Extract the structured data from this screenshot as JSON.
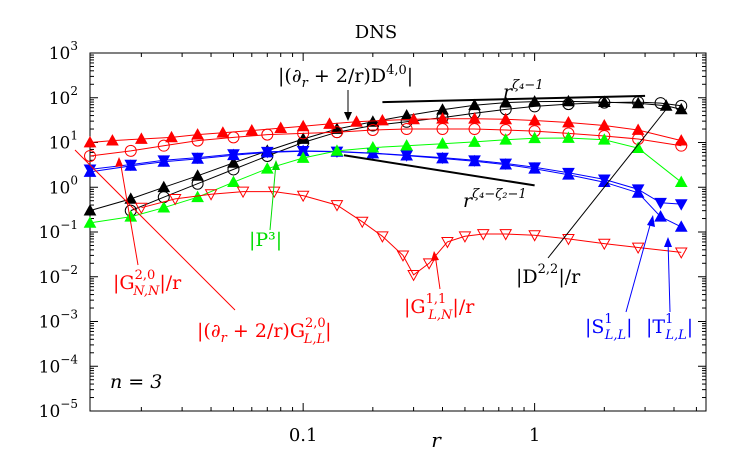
{
  "chart_data": {
    "type": "line",
    "title": "DNS",
    "xlabel": "r",
    "ylabel": "",
    "xscale": "log",
    "yscale": "log",
    "xlim": [
      0.012,
      5.5
    ],
    "ylim": [
      1e-05,
      1000
    ],
    "grid": false,
    "legend": "none",
    "x_ticks": [
      {
        "value": 0.1,
        "label": "0.1"
      },
      {
        "value": 1,
        "label": "1"
      }
    ],
    "y_ticks": [
      {
        "value": 1e-05,
        "base": "10",
        "exp": "−5"
      },
      {
        "value": 0.0001,
        "base": "10",
        "exp": "−4"
      },
      {
        "value": 0.001,
        "base": "10",
        "exp": "−3"
      },
      {
        "value": 0.01,
        "base": "10",
        "exp": "−2"
      },
      {
        "value": 0.1,
        "base": "10",
        "exp": "−1"
      },
      {
        "value": 1,
        "base": "10",
        "exp": "0"
      },
      {
        "value": 10,
        "base": "10",
        "exp": "1"
      },
      {
        "value": 100,
        "base": "10",
        "exp": "2"
      },
      {
        "value": 1000,
        "base": "10",
        "exp": "3"
      }
    ],
    "annotation_n": "n = 3",
    "series": [
      {
        "key": "D40",
        "color": "#000000",
        "marker": "triangle-up",
        "filled": true,
        "x": [
          0.012,
          0.018,
          0.025,
          0.035,
          0.05,
          0.07,
          0.1,
          0.14,
          0.2,
          0.28,
          0.4,
          0.55,
          0.75,
          1.0,
          1.4,
          2.0,
          2.8,
          3.7,
          4.3
        ],
        "y": [
          0.3,
          0.55,
          1.0,
          1.8,
          3.5,
          6.5,
          12,
          20,
          29,
          40,
          54,
          68,
          78,
          82,
          83,
          80,
          75,
          66,
          55
        ]
      },
      {
        "key": "D22",
        "color": "#000000",
        "marker": "circle",
        "filled": false,
        "x": [
          0.018,
          0.025,
          0.035,
          0.05,
          0.07,
          0.1,
          0.14,
          0.2,
          0.28,
          0.4,
          0.55,
          0.75,
          1.0,
          1.4,
          2.0,
          2.8,
          3.5,
          4.3
        ],
        "y": [
          0.3,
          0.6,
          1.2,
          2.5,
          5.0,
          10,
          17,
          24,
          29,
          36,
          45,
          55,
          64,
          72,
          78,
          80,
          76,
          66
        ]
      },
      {
        "key": "GLL_dr",
        "color": "#ff0000",
        "marker": "triangle-up",
        "filled": true,
        "x": [
          0.012,
          0.015,
          0.02,
          0.027,
          0.035,
          0.045,
          0.06,
          0.08,
          0.1,
          0.13,
          0.17,
          0.22,
          0.3,
          0.4,
          0.55,
          0.75,
          1.0,
          1.4,
          2.0,
          2.8,
          4.3
        ],
        "y": [
          10,
          11,
          12,
          13,
          15,
          16.5,
          18.5,
          21,
          23,
          26,
          29,
          31,
          33,
          34,
          34,
          33,
          31,
          28,
          24,
          19,
          11
        ]
      },
      {
        "key": "GNN",
        "color": "#ff0000",
        "marker": "circle",
        "filled": false,
        "x": [
          0.012,
          0.018,
          0.025,
          0.035,
          0.05,
          0.07,
          0.1,
          0.14,
          0.2,
          0.28,
          0.4,
          0.55,
          0.75,
          1.0,
          1.4,
          2.0,
          2.8,
          4.3
        ],
        "y": [
          5.0,
          6.5,
          8.5,
          11,
          13,
          15,
          16,
          17,
          19,
          20,
          20,
          20,
          19,
          18,
          16,
          14,
          12,
          8.5
        ]
      },
      {
        "key": "S1",
        "color": "#0000ff",
        "marker": "triangle-down",
        "filled": true,
        "x": [
          0.012,
          0.018,
          0.025,
          0.035,
          0.05,
          0.07,
          0.1,
          0.14,
          0.2,
          0.28,
          0.4,
          0.55,
          0.75,
          1.0,
          1.4,
          2.0,
          2.8,
          3.5,
          4.3
        ],
        "y": [
          2.5,
          3.2,
          4.0,
          4.6,
          5.5,
          6.2,
          6.5,
          6.3,
          5.8,
          5.2,
          4.6,
          4.0,
          3.4,
          2.8,
          2.1,
          1.5,
          0.9,
          0.45,
          0.42
        ]
      },
      {
        "key": "T1",
        "color": "#0000ff",
        "marker": "triangle-up",
        "filled": true,
        "x": [
          0.012,
          0.018,
          0.025,
          0.035,
          0.05,
          0.07,
          0.1,
          0.14,
          0.2,
          0.28,
          0.4,
          0.55,
          0.75,
          1.0,
          1.4,
          2.0,
          2.8,
          3.5,
          4.3
        ],
        "y": [
          2.2,
          3.0,
          3.7,
          4.3,
          5.2,
          6.0,
          6.4,
          6.2,
          5.7,
          5.1,
          4.4,
          3.8,
          3.2,
          2.6,
          1.9,
          1.3,
          0.75,
          0.22,
          0.13
        ]
      },
      {
        "key": "P3",
        "color": "#00ff00",
        "marker": "triangle-up",
        "filled": true,
        "x": [
          0.012,
          0.018,
          0.025,
          0.035,
          0.05,
          0.07,
          0.1,
          0.14,
          0.2,
          0.28,
          0.4,
          0.55,
          0.75,
          1.0,
          1.4,
          2.0,
          2.8,
          4.3
        ],
        "y": [
          0.16,
          0.22,
          0.35,
          0.6,
          1.3,
          2.6,
          4.5,
          6.5,
          7.7,
          8.5,
          9.4,
          10.3,
          11.5,
          12.5,
          12.6,
          11.5,
          7.5,
          1.3
        ]
      },
      {
        "key": "GLN",
        "color": "#ff0000",
        "marker": "triangle-down",
        "filled": false,
        "x": [
          0.02,
          0.028,
          0.04,
          0.055,
          0.075,
          0.1,
          0.14,
          0.18,
          0.22,
          0.27,
          0.3,
          0.35,
          0.42,
          0.5,
          0.6,
          0.75,
          1.0,
          1.4,
          2.0,
          2.8,
          4.3
        ],
        "y": [
          0.35,
          0.55,
          0.7,
          0.8,
          0.8,
          0.65,
          0.4,
          0.17,
          0.08,
          0.03,
          0.011,
          0.02,
          0.06,
          0.08,
          0.09,
          0.09,
          0.085,
          0.07,
          0.055,
          0.045,
          0.035
        ]
      }
    ],
    "reference_lines": [
      {
        "x": [
          0.22,
          3.0
        ],
        "y": [
          80,
          110
        ]
      },
      {
        "x": [
          0.15,
          1.0
        ],
        "y": [
          5.2,
          1.1
        ]
      }
    ],
    "labels": {
      "dns": "DNS",
      "d40_main": "|(∂",
      "d40_r": "r",
      "d40_tail": " + 2/r)D",
      "d40_sup": "4,0",
      "d40_end": "|",
      "slope1_base": "r",
      "slope1_sup": "ζ₄−1",
      "slope2_base": "r",
      "slope2_sup": "ζ₄−ζ₂−1",
      "p3": "|P³|",
      "gnn_a": "|G",
      "gnn_sub": "N,N",
      "gnn_sup": "2,0",
      "gnn_b": "|/r",
      "gll_a": "|(∂",
      "gll_r": "r",
      "gll_b": " + 2/r)G",
      "gll_sub": "L,L",
      "gll_sup": "2,0",
      "gll_c": "|",
      "gln_a": "|G",
      "gln_sub": "L,N",
      "gln_sup": "1,1",
      "gln_b": "|/r",
      "d22_a": "|D",
      "d22_sup": "2,2",
      "d22_b": "|/r",
      "s1_a": "|S",
      "s1_sub": "L,L",
      "s1_sup": "1",
      "s1_b": "|",
      "t1_a": "|T",
      "t1_sub": "L,L",
      "t1_sup": "1",
      "t1_b": "|",
      "n3": "n = 3",
      "xlabel": "r"
    }
  }
}
